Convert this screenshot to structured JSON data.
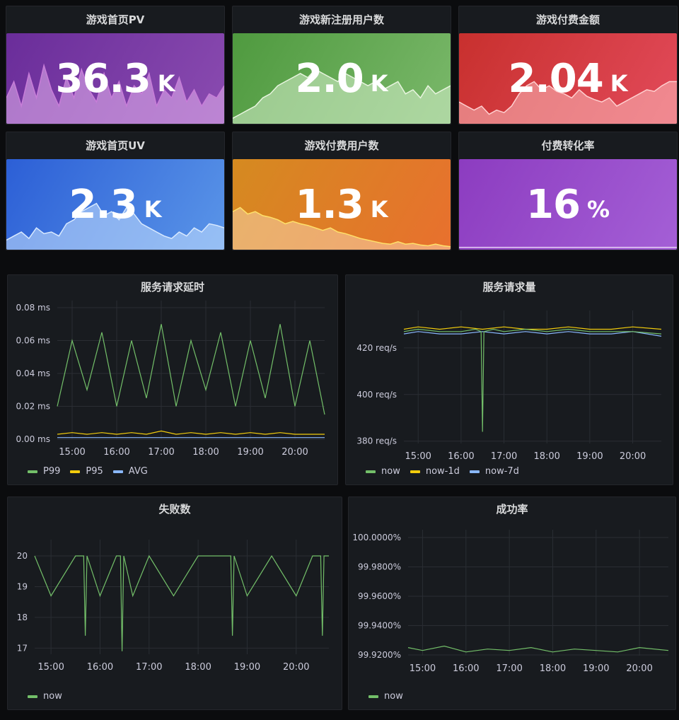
{
  "stats": [
    {
      "title": "游戏首页PV",
      "value": "36.3",
      "unit": "K",
      "colors": [
        "#6a2d9a",
        "#8a4bb0"
      ],
      "spark": "#c77dd8",
      "fill": "rgba(230,180,240,0.55)",
      "trend": [
        0.3,
        0.5,
        0.2,
        0.6,
        0.3,
        0.7,
        0.4,
        0.2,
        0.55,
        0.3,
        0.65,
        0.4,
        0.25,
        0.6,
        0.3,
        0.5,
        0.2,
        0.45,
        0.35,
        0.6,
        0.2,
        0.4,
        0.3,
        0.55,
        0.25,
        0.4,
        0.2,
        0.35,
        0.3,
        0.45
      ]
    },
    {
      "title": "游戏新注册用户数",
      "value": "2.0",
      "unit": "K",
      "colors": [
        "#4f9a3f",
        "#7ab86a"
      ],
      "spark": "#e8f5df",
      "fill": "rgba(215,240,205,0.55)",
      "trend": [
        0.05,
        0.1,
        0.15,
        0.2,
        0.3,
        0.35,
        0.45,
        0.5,
        0.55,
        0.6,
        0.55,
        0.65,
        0.6,
        0.55,
        0.5,
        0.6,
        0.55,
        0.5,
        0.45,
        0.5,
        0.4,
        0.45,
        0.5,
        0.35,
        0.4,
        0.3,
        0.45,
        0.35,
        0.4,
        0.45
      ]
    },
    {
      "title": "游戏付费金额",
      "value": "2.04",
      "unit": "K",
      "colors": [
        "#c8302e",
        "#e24a5a"
      ],
      "spark": "#ffd0d0",
      "fill": "rgba(255,200,200,0.5)",
      "trend": [
        0.25,
        0.2,
        0.15,
        0.2,
        0.1,
        0.15,
        0.12,
        0.2,
        0.35,
        0.45,
        0.5,
        0.4,
        0.45,
        0.38,
        0.35,
        0.3,
        0.4,
        0.32,
        0.28,
        0.25,
        0.3,
        0.2,
        0.25,
        0.3,
        0.35,
        0.4,
        0.38,
        0.45,
        0.5,
        0.5
      ]
    },
    {
      "title": "游戏首页UV",
      "value": "2.3",
      "unit": "K",
      "colors": [
        "#2c5fd6",
        "#5a95e8"
      ],
      "spark": "#d9eaff",
      "fill": "rgba(200,225,255,0.55)",
      "trend": [
        0.1,
        0.15,
        0.2,
        0.12,
        0.25,
        0.18,
        0.2,
        0.15,
        0.3,
        0.35,
        0.45,
        0.5,
        0.55,
        0.4,
        0.45,
        0.35,
        0.5,
        0.42,
        0.3,
        0.25,
        0.2,
        0.15,
        0.12,
        0.2,
        0.15,
        0.25,
        0.2,
        0.3,
        0.28,
        0.25
      ]
    },
    {
      "title": "游戏付费用户数",
      "value": "1.3",
      "unit": "K",
      "colors": [
        "#d58a20",
        "#e8702e"
      ],
      "spark": "#ffe16a",
      "fill": "rgba(255,230,200,0.45)",
      "trend": [
        0.45,
        0.5,
        0.42,
        0.45,
        0.4,
        0.38,
        0.35,
        0.3,
        0.33,
        0.3,
        0.28,
        0.25,
        0.22,
        0.25,
        0.2,
        0.18,
        0.15,
        0.12,
        0.1,
        0.08,
        0.06,
        0.05,
        0.08,
        0.05,
        0.06,
        0.04,
        0.03,
        0.05,
        0.03,
        0.02
      ]
    },
    {
      "title": "付费转化率",
      "value": "16",
      "unit": "%",
      "colors": [
        "#8c3cc0",
        "#a45fd6"
      ],
      "spark": "#e6d0f5",
      "fill": "rgba(230,210,245,0.0)",
      "trend": [
        0.01,
        0.01,
        0.01,
        0.01,
        0.01,
        0.01,
        0.01,
        0.01,
        0.01,
        0.01,
        0.01,
        0.01,
        0.01,
        0.01,
        0.01,
        0.01,
        0.01,
        0.01,
        0.01,
        0.01,
        0.01,
        0.01,
        0.01,
        0.01,
        0.01,
        0.01,
        0.01,
        0.01,
        0.01,
        0.01
      ]
    }
  ],
  "panels": {
    "latency": {
      "title": "服务请求延时",
      "legend": [
        {
          "name": "P99",
          "color": "#73bf69"
        },
        {
          "name": "P95",
          "color": "#f2cc0c"
        },
        {
          "name": "AVG",
          "color": "#8ab8ff"
        }
      ]
    },
    "requests": {
      "title": "服务请求量",
      "legend": [
        {
          "name": "now",
          "color": "#73bf69"
        },
        {
          "name": "now-1d",
          "color": "#f2cc0c"
        },
        {
          "name": "now-7d",
          "color": "#8ab8ff"
        }
      ]
    },
    "failures": {
      "title": "失败数",
      "legend": [
        {
          "name": "now",
          "color": "#73bf69"
        }
      ]
    },
    "success": {
      "title": "成功率",
      "legend": [
        {
          "name": "now",
          "color": "#73bf69"
        }
      ]
    }
  },
  "chart_data": [
    {
      "type": "line",
      "title": "服务请求延时",
      "x_ticks": [
        "15:00",
        "16:00",
        "17:00",
        "18:00",
        "19:00",
        "20:00"
      ],
      "y_ticks": [
        "0.00 ms",
        "0.02 ms",
        "0.04 ms",
        "0.06 ms",
        "0.08 ms"
      ],
      "ylim": [
        0,
        0.08
      ],
      "xlim": [
        "14:40",
        "20:40"
      ],
      "series": [
        {
          "name": "P99",
          "color": "#73bf69",
          "x": [
            "14:40",
            "15:00",
            "15:20",
            "15:40",
            "16:00",
            "16:20",
            "16:40",
            "17:00",
            "17:20",
            "17:40",
            "18:00",
            "18:20",
            "18:40",
            "19:00",
            "19:20",
            "19:40",
            "20:00",
            "20:20",
            "20:40"
          ],
          "values": [
            0.02,
            0.06,
            0.03,
            0.065,
            0.02,
            0.06,
            0.025,
            0.07,
            0.02,
            0.06,
            0.03,
            0.065,
            0.02,
            0.06,
            0.025,
            0.07,
            0.02,
            0.06,
            0.015
          ]
        },
        {
          "name": "P95",
          "color": "#f2cc0c",
          "x": [
            "14:40",
            "15:00",
            "15:20",
            "15:40",
            "16:00",
            "16:20",
            "16:40",
            "17:00",
            "17:20",
            "17:40",
            "18:00",
            "18:20",
            "18:40",
            "19:00",
            "19:20",
            "19:40",
            "20:00",
            "20:20",
            "20:40"
          ],
          "values": [
            0.003,
            0.004,
            0.003,
            0.004,
            0.003,
            0.004,
            0.003,
            0.005,
            0.003,
            0.004,
            0.003,
            0.004,
            0.003,
            0.004,
            0.003,
            0.004,
            0.003,
            0.003,
            0.003
          ]
        },
        {
          "name": "AVG",
          "color": "#8ab8ff",
          "x": [
            "14:40",
            "15:00",
            "15:20",
            "15:40",
            "16:00",
            "16:20",
            "16:40",
            "17:00",
            "17:20",
            "17:40",
            "18:00",
            "18:20",
            "18:40",
            "19:00",
            "19:20",
            "19:40",
            "20:00",
            "20:20",
            "20:40"
          ],
          "values": [
            0.001,
            0.001,
            0.001,
            0.001,
            0.001,
            0.001,
            0.001,
            0.001,
            0.001,
            0.001,
            0.001,
            0.001,
            0.001,
            0.001,
            0.001,
            0.001,
            0.001,
            0.001,
            0.001
          ]
        }
      ]
    },
    {
      "type": "line",
      "title": "服务请求量",
      "x_ticks": [
        "15:00",
        "16:00",
        "17:00",
        "18:00",
        "19:00",
        "20:00"
      ],
      "y_ticks": [
        "380 req/s",
        "400 req/s",
        "420 req/s"
      ],
      "ylim": [
        379,
        433
      ],
      "xlim": [
        "14:40",
        "20:40"
      ],
      "series": [
        {
          "name": "now",
          "color": "#73bf69",
          "x": [
            "14:40",
            "15:00",
            "15:30",
            "16:00",
            "16:20",
            "16:28",
            "16:30",
            "16:32",
            "16:45",
            "17:00",
            "17:30",
            "18:00",
            "18:30",
            "19:00",
            "19:30",
            "20:00",
            "20:40"
          ],
          "values": [
            427,
            428,
            427,
            427,
            428,
            427,
            384,
            427,
            428,
            427,
            428,
            427,
            428,
            427,
            427,
            427,
            426
          ]
        },
        {
          "name": "now-1d",
          "color": "#f2cc0c",
          "x": [
            "14:40",
            "15:00",
            "15:30",
            "16:00",
            "16:30",
            "17:00",
            "17:30",
            "18:00",
            "18:30",
            "19:00",
            "19:30",
            "20:00",
            "20:40"
          ],
          "values": [
            428,
            429,
            428,
            429,
            428,
            429,
            428,
            428,
            429,
            428,
            428,
            429,
            428
          ]
        },
        {
          "name": "now-7d",
          "color": "#8ab8ff",
          "x": [
            "14:40",
            "15:00",
            "15:30",
            "16:00",
            "16:30",
            "17:00",
            "17:30",
            "18:00",
            "18:30",
            "19:00",
            "19:30",
            "20:00",
            "20:40"
          ],
          "values": [
            426,
            427,
            426,
            426,
            427,
            426,
            427,
            426,
            427,
            426,
            426,
            427,
            425
          ]
        }
      ]
    },
    {
      "type": "line",
      "title": "失败数",
      "x_ticks": [
        "15:00",
        "16:00",
        "17:00",
        "18:00",
        "19:00",
        "20:00"
      ],
      "y_ticks": [
        "17",
        "18",
        "19",
        "20"
      ],
      "ylim": [
        16.8,
        20.3
      ],
      "xlim": [
        "14:40",
        "20:40"
      ],
      "series": [
        {
          "name": "now",
          "color": "#73bf69",
          "x": [
            "14:40",
            "15:00",
            "15:30",
            "15:40",
            "15:42",
            "15:44",
            "16:00",
            "16:20",
            "16:25",
            "16:27",
            "16:29",
            "16:40",
            "17:00",
            "17:30",
            "18:00",
            "18:30",
            "18:40",
            "18:42",
            "18:44",
            "19:00",
            "19:30",
            "20:00",
            "20:20",
            "20:30",
            "20:32",
            "20:34",
            "20:40"
          ],
          "values": [
            20,
            18.7,
            20,
            20,
            17.4,
            20,
            18.7,
            20,
            20,
            16.9,
            20,
            18.7,
            20,
            18.7,
            20,
            20,
            20,
            17.4,
            20,
            18.7,
            20,
            18.7,
            20,
            20,
            17.4,
            20,
            20
          ]
        }
      ]
    },
    {
      "type": "line",
      "title": "成功率",
      "x_ticks": [
        "15:00",
        "16:00",
        "17:00",
        "18:00",
        "19:00",
        "20:00"
      ],
      "y_ticks": [
        "99.9200%",
        "99.9400%",
        "99.9600%",
        "99.9800%",
        "100.0000%"
      ],
      "ylim": [
        99.9195,
        100.0005
      ],
      "xlim": [
        "14:40",
        "20:40"
      ],
      "series": [
        {
          "name": "now",
          "color": "#73bf69",
          "x": [
            "14:40",
            "15:00",
            "15:30",
            "16:00",
            "16:30",
            "17:00",
            "17:30",
            "18:00",
            "18:30",
            "19:00",
            "19:30",
            "20:00",
            "20:40"
          ],
          "values": [
            99.925,
            99.923,
            99.926,
            99.922,
            99.924,
            99.923,
            99.925,
            99.922,
            99.924,
            99.923,
            99.922,
            99.925,
            99.923
          ]
        }
      ]
    }
  ]
}
